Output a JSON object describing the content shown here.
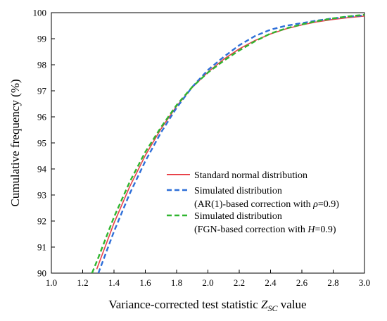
{
  "chart_data": {
    "type": "line",
    "xlabel_prefix": "Variance-corrected test statistic ",
    "xlabel_var": "Z",
    "xlabel_sub": "SC",
    "xlabel_suffix": " value",
    "ylabel": "Cumulative frequency (%)",
    "xlim": [
      1.0,
      3.0
    ],
    "ylim": [
      90,
      100
    ],
    "x_ticks": [
      "1.0",
      "1.2",
      "1.4",
      "1.6",
      "1.8",
      "2.0",
      "2.2",
      "2.4",
      "2.6",
      "2.8",
      "3.0"
    ],
    "y_ticks": [
      "90",
      "91",
      "92",
      "93",
      "94",
      "95",
      "96",
      "97",
      "98",
      "99",
      "100"
    ],
    "grid": false,
    "legend_position": "lower-right",
    "series": [
      {
        "name": "Standard normal distribution",
        "color": "#e8434a",
        "style": "solid",
        "x": [
          1.29,
          1.3,
          1.4,
          1.5,
          1.6,
          1.7,
          1.8,
          1.9,
          2.0,
          2.1,
          2.2,
          2.3,
          2.4,
          2.5,
          2.6,
          2.7,
          2.8,
          2.9,
          3.0
        ],
        "y": [
          90.15,
          90.32,
          91.92,
          93.32,
          94.52,
          95.54,
          96.41,
          97.13,
          97.72,
          98.21,
          98.61,
          98.93,
          99.18,
          99.38,
          99.53,
          99.65,
          99.74,
          99.81,
          99.87
        ]
      },
      {
        "name_line1": "Simulated distribution",
        "name_pre": "(AR(1)-based correction with ",
        "name_sym": "ρ",
        "name_post": "=0.9)",
        "color": "#2e6fd8",
        "style": "dashed",
        "x": [
          1.3,
          1.4,
          1.5,
          1.6,
          1.7,
          1.8,
          1.9,
          2.0,
          2.1,
          2.2,
          2.3,
          2.4,
          2.5,
          2.6,
          2.7,
          2.8,
          2.9,
          3.0
        ],
        "y": [
          90.0,
          91.6,
          93.05,
          94.3,
          95.4,
          96.35,
          97.15,
          97.8,
          98.3,
          98.75,
          99.1,
          99.35,
          99.5,
          99.6,
          99.7,
          99.78,
          99.85,
          99.9
        ]
      },
      {
        "name_line1": "Simulated distribution",
        "name_pre": "(FGN-based correction with ",
        "name_sym": "H",
        "name_post": "=0.9)",
        "color": "#2fb52f",
        "style": "dashed",
        "x": [
          1.26,
          1.3,
          1.4,
          1.5,
          1.6,
          1.7,
          1.8,
          1.9,
          2.0,
          2.1,
          2.2,
          2.3,
          2.4,
          2.5,
          2.6,
          2.7,
          2.8,
          2.9,
          3.0
        ],
        "y": [
          90.0,
          90.6,
          92.15,
          93.5,
          94.65,
          95.6,
          96.45,
          97.15,
          97.7,
          98.15,
          98.55,
          98.9,
          99.2,
          99.4,
          99.55,
          99.68,
          99.78,
          99.86,
          99.92
        ]
      }
    ]
  }
}
